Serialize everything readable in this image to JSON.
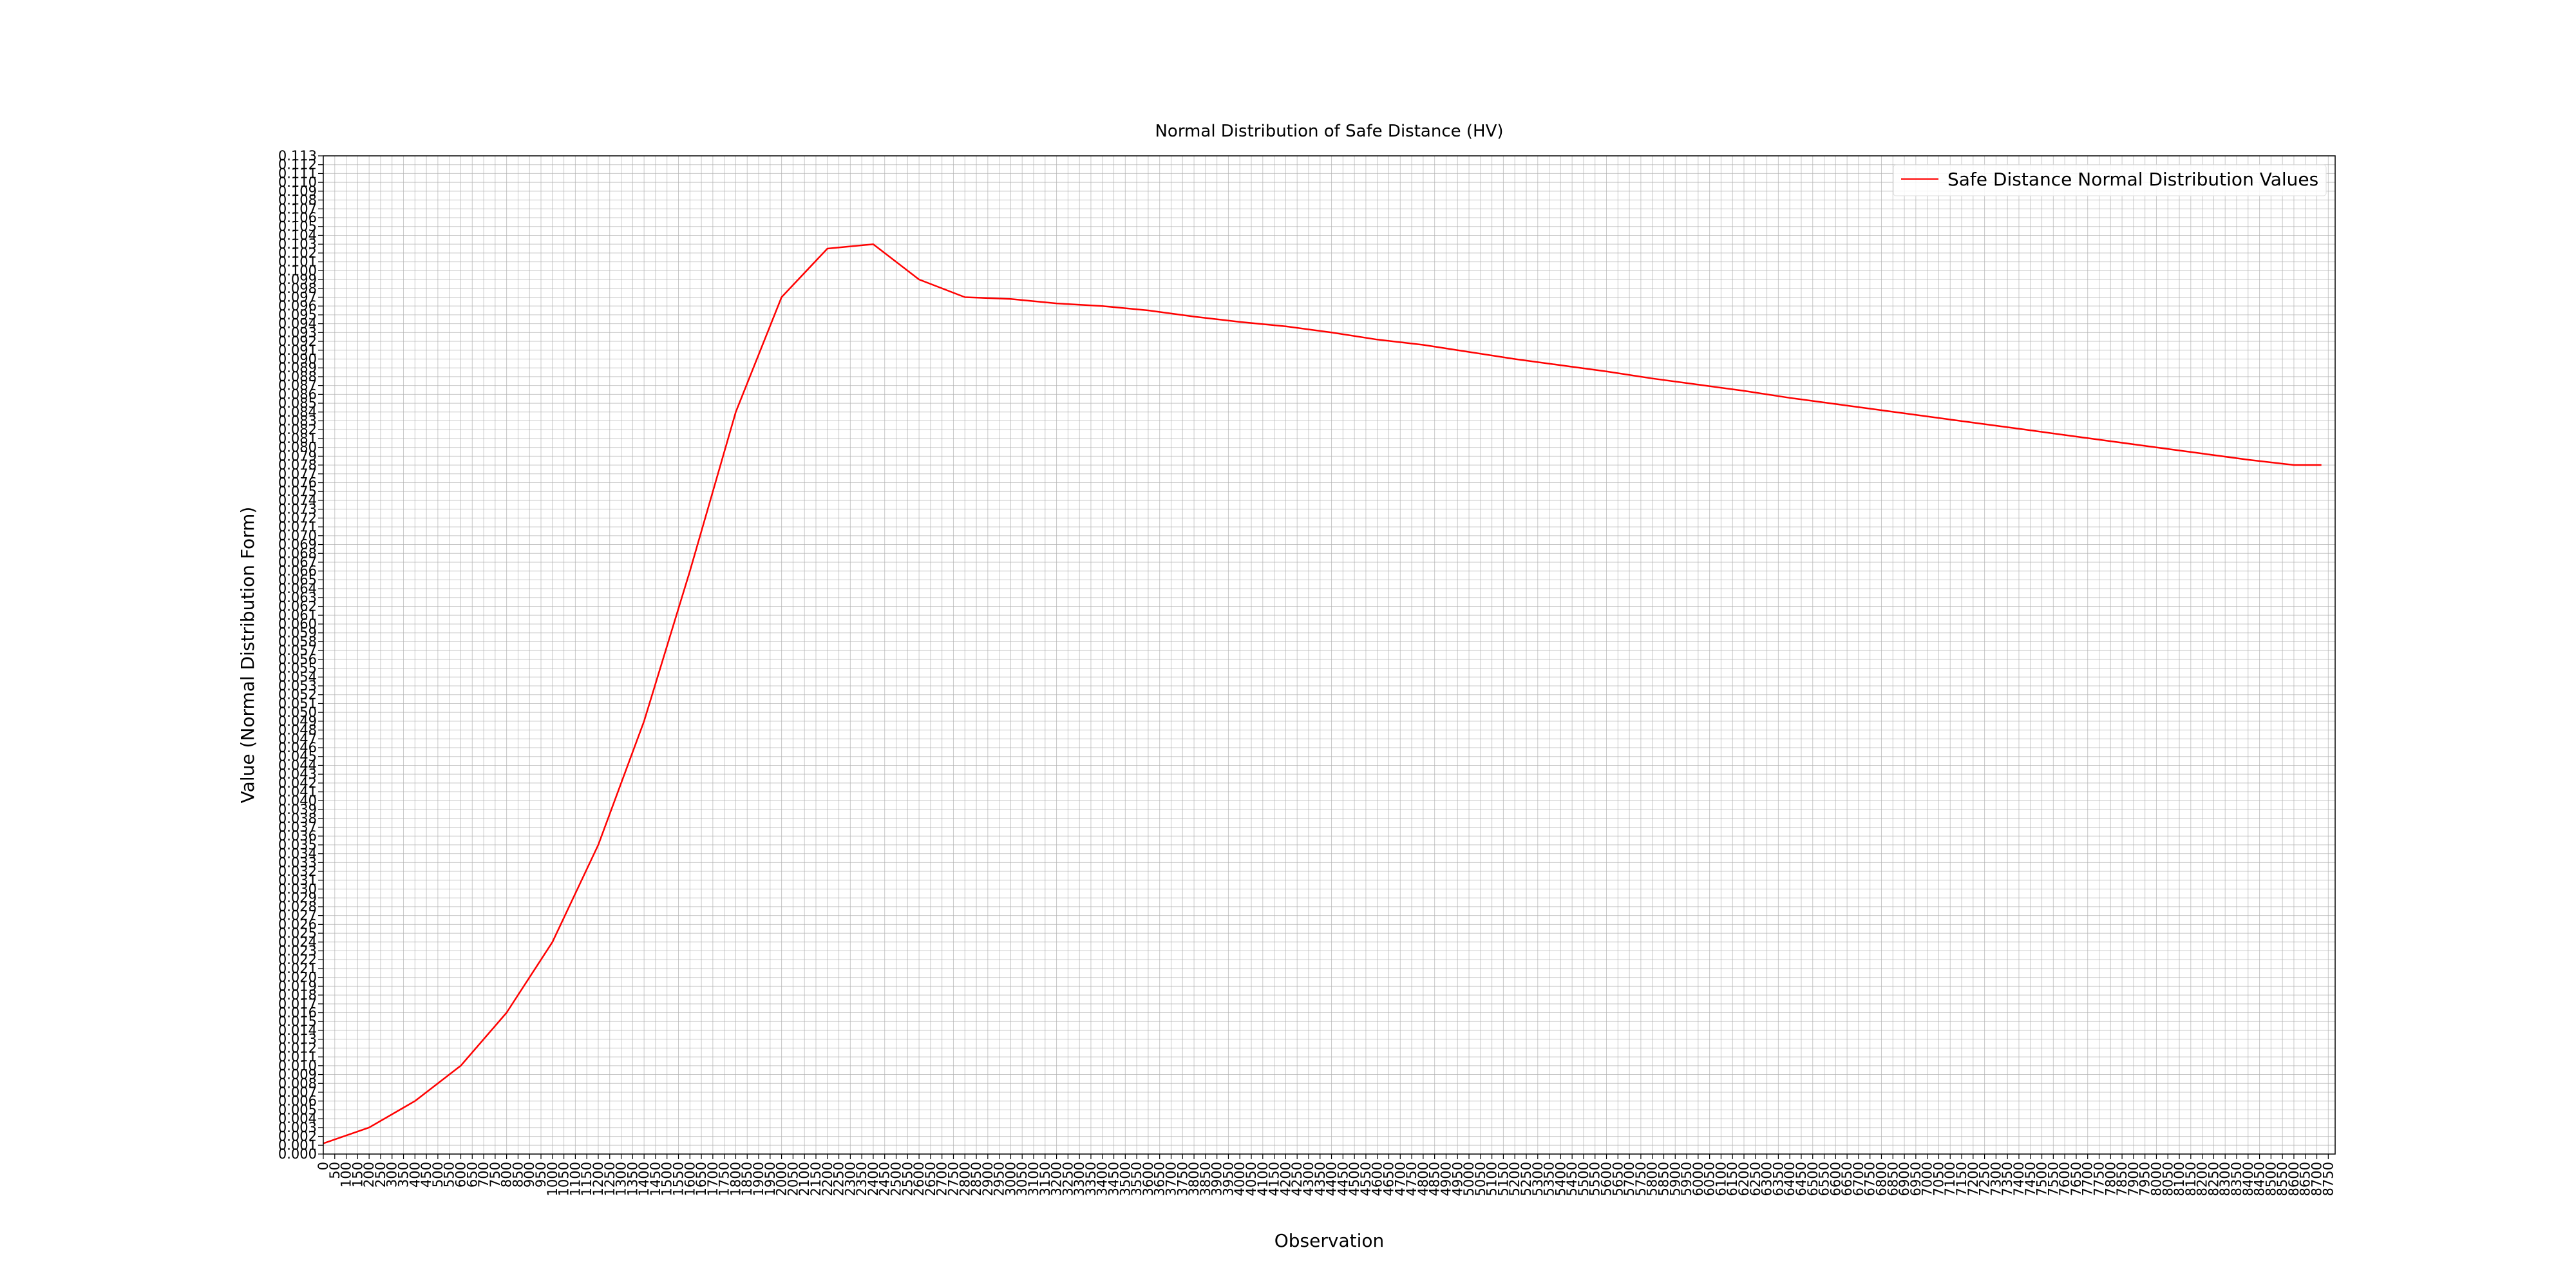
{
  "chart_data": {
    "type": "line",
    "title": "Normal Distribution of Safe Distance (HV)",
    "xlabel": "Observation",
    "ylabel": "Value (Normal Distribution Form)",
    "xlim": [
      0,
      8780
    ],
    "ylim": [
      0,
      0.113
    ],
    "x_tick_step": 50,
    "y_tick_step": 0.001,
    "grid": true,
    "legend_position": "top-right",
    "series": [
      {
        "name": "Safe Distance Normal Distribution Values",
        "color": "#ff0000",
        "x": [
          0,
          200,
          400,
          600,
          800,
          1000,
          1200,
          1400,
          1600,
          1800,
          2000,
          2200,
          2400,
          2600,
          2800,
          3000,
          3200,
          3400,
          3600,
          3800,
          4000,
          4200,
          4400,
          4600,
          4800,
          5000,
          5200,
          5400,
          5600,
          5800,
          6000,
          6200,
          6400,
          6600,
          6800,
          7000,
          7200,
          7400,
          7600,
          7800,
          8000,
          8200,
          8400,
          8600,
          8720
        ],
        "y": [
          0.0012,
          0.003,
          0.006,
          0.01,
          0.016,
          0.024,
          0.035,
          0.049,
          0.066,
          0.084,
          0.097,
          0.1025,
          0.103,
          0.099,
          0.097,
          0.0968,
          0.0963,
          0.096,
          0.0955,
          0.0948,
          0.0942,
          0.0937,
          0.093,
          0.0922,
          0.0916,
          0.0908,
          0.09,
          0.0893,
          0.0886,
          0.0878,
          0.0871,
          0.0864,
          0.0856,
          0.0849,
          0.0842,
          0.0835,
          0.0828,
          0.0821,
          0.0814,
          0.0807,
          0.08,
          0.0793,
          0.0786,
          0.078,
          0.078
        ]
      }
    ]
  }
}
